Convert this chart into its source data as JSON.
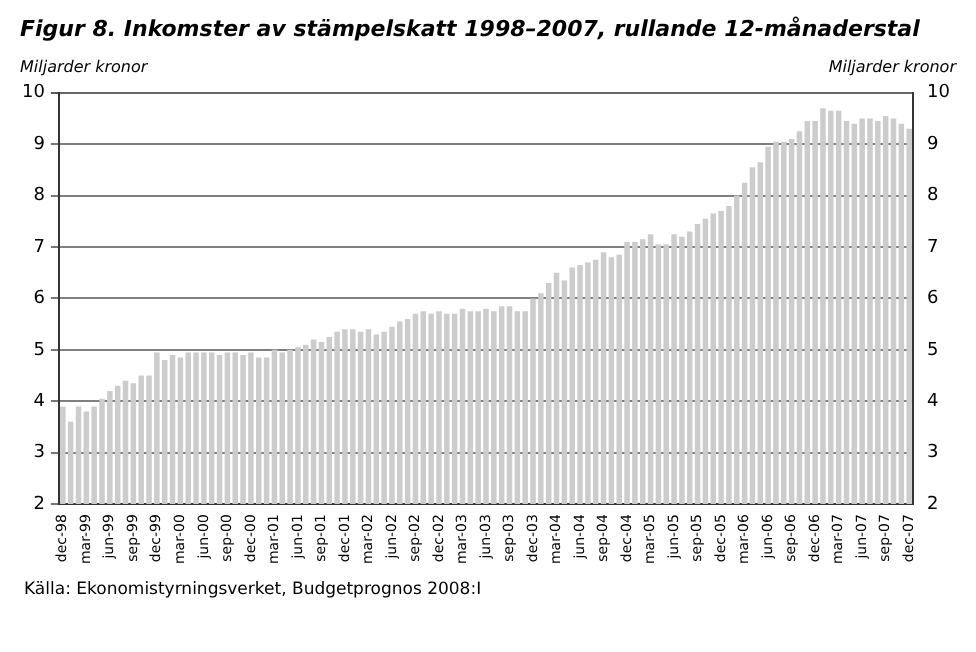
{
  "chart_data": {
    "type": "bar",
    "title": "Figur 8. Inkomster av stämpelskatt 1998–2007, rullande 12-månaderstal",
    "ylabel": "Miljarder kronor",
    "y2label": "Miljarder kronor",
    "categories": [
      "dec-98",
      null,
      null,
      "mar-99",
      null,
      null,
      "jun-99",
      null,
      null,
      "sep-99",
      null,
      null,
      "dec-99",
      null,
      null,
      "mar-00",
      null,
      null,
      "jun-00",
      null,
      null,
      "sep-00",
      null,
      null,
      "dec-00",
      null,
      null,
      "mar-01",
      null,
      null,
      "jun-01",
      null,
      null,
      "sep-01",
      null,
      null,
      "dec-01",
      null,
      null,
      "mar-02",
      null,
      null,
      "jun-02",
      null,
      null,
      "sep-02",
      null,
      null,
      "dec-02",
      null,
      null,
      "mar-03",
      null,
      null,
      "jun-03",
      null,
      null,
      "sep-03",
      null,
      null,
      "dec-03",
      null,
      null,
      "mar-04",
      null,
      null,
      "jun-04",
      null,
      null,
      "sep-04",
      null,
      null,
      "dec-04",
      null,
      null,
      "mar-05",
      null,
      null,
      "jun-05",
      null,
      null,
      "sep-05",
      null,
      null,
      "dec-05",
      null,
      null,
      "mar-06",
      null,
      null,
      "jun-06",
      null,
      null,
      "sep-06",
      null,
      null,
      "dec-06",
      null,
      null,
      "mar-07",
      null,
      null,
      "jun-07",
      null,
      null,
      "sep-07",
      null,
      null,
      "dec-07"
    ],
    "values": [
      3.9,
      3.6,
      3.9,
      3.8,
      3.9,
      4.05,
      4.2,
      4.3,
      4.4,
      4.35,
      4.5,
      4.5,
      4.95,
      4.8,
      4.9,
      4.85,
      4.95,
      4.95,
      4.95,
      4.95,
      4.9,
      4.95,
      4.95,
      4.9,
      4.95,
      4.85,
      4.85,
      5.0,
      4.95,
      5.0,
      5.05,
      5.1,
      5.2,
      5.15,
      5.25,
      5.35,
      5.4,
      5.4,
      5.35,
      5.4,
      5.3,
      5.35,
      5.45,
      5.55,
      5.6,
      5.7,
      5.75,
      5.7,
      5.75,
      5.7,
      5.7,
      5.8,
      5.75,
      5.75,
      5.8,
      5.75,
      5.85,
      5.85,
      5.75,
      5.75,
      6.0,
      6.1,
      6.3,
      6.5,
      6.35,
      6.6,
      6.65,
      6.7,
      6.75,
      6.9,
      6.8,
      6.85,
      7.1,
      7.1,
      7.15,
      7.25,
      7.05,
      7.05,
      7.25,
      7.2,
      7.3,
      7.45,
      7.55,
      7.65,
      7.7,
      7.8,
      8.0,
      8.25,
      8.55,
      8.65,
      8.95,
      9.05,
      9.05,
      9.1,
      9.25,
      9.45,
      9.45,
      9.7,
      9.65,
      9.65,
      9.45,
      9.4,
      9.5,
      9.5,
      9.45,
      9.55,
      9.5,
      9.4,
      9.3
    ],
    "color": "#cccccc",
    "ylim": [
      2,
      10
    ],
    "yticks": [
      2,
      3,
      4,
      5,
      6,
      7,
      8,
      9,
      10
    ],
    "y2lim": [
      2,
      10
    ],
    "y2ticks": [
      2,
      3,
      4,
      5,
      6,
      7,
      8,
      9,
      10
    ],
    "grid": "y",
    "legend": false,
    "annotations": [
      "Källa: Ekonomistyrningsverket, Budgetprognos 2008:I"
    ]
  }
}
